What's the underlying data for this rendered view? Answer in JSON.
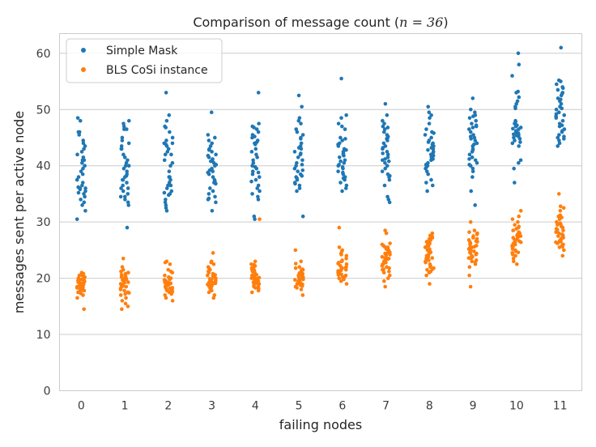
{
  "chart_data": {
    "type": "scatter",
    "subtype": "strip",
    "title": "Comparison of message count",
    "title_math": "n = 36",
    "xlabel": "failing nodes",
    "ylabel": "messages sent per active node",
    "categories": [
      "0",
      "1",
      "2",
      "3",
      "4",
      "5",
      "6",
      "7",
      "8",
      "9",
      "10",
      "11"
    ],
    "yticks": [
      0,
      10,
      20,
      30,
      40,
      50,
      60
    ],
    "ylim": [
      0,
      63.5
    ],
    "grid": true,
    "legend_position": "top-left",
    "series": [
      {
        "name": "Simple Mask",
        "color": "#1f77b4",
        "values": [
          [
            48.5,
            48.0,
            46.0,
            45.5,
            44.0,
            43.5,
            43.0,
            42.5,
            42.0,
            41.5,
            41.0,
            40.5,
            40.0,
            39.0,
            38.0,
            37.5,
            37.0,
            36.5,
            36.2,
            36.0,
            35.8,
            35.5,
            35.0,
            34.5,
            34.0,
            33.5,
            33.0,
            32.0,
            30.5,
            46.0,
            44.5,
            41.0,
            39.5,
            38.5,
            36.0,
            35.2
          ],
          [
            48.0,
            47.5,
            47.0,
            46.5,
            45.0,
            44.0,
            43.5,
            43.0,
            42.0,
            41.5,
            41.0,
            40.5,
            40.0,
            39.5,
            39.0,
            38.5,
            38.0,
            37.5,
            37.0,
            36.5,
            36.0,
            35.5,
            35.0,
            34.5,
            34.0,
            33.5,
            33.0,
            29.0,
            43.0,
            40.0,
            37.5,
            36.0,
            34.5,
            44.5,
            46.5,
            38.2
          ],
          [
            53.0,
            49.0,
            48.0,
            47.0,
            46.0,
            45.0,
            44.5,
            44.0,
            43.5,
            43.0,
            42.5,
            42.0,
            41.0,
            40.0,
            39.0,
            38.0,
            37.5,
            37.0,
            36.5,
            36.0,
            35.5,
            35.0,
            34.0,
            33.5,
            33.0,
            32.5,
            32.0,
            44.0,
            42.0,
            38.0,
            36.5,
            35.2,
            34.8,
            40.5,
            43.8,
            46.8
          ],
          [
            49.5,
            45.5,
            44.5,
            44.0,
            43.0,
            42.5,
            42.0,
            41.5,
            41.0,
            40.5,
            40.0,
            39.5,
            39.0,
            38.5,
            38.0,
            37.5,
            37.0,
            36.0,
            35.0,
            34.5,
            34.0,
            33.5,
            32.0,
            43.5,
            41.8,
            40.8,
            39.2,
            37.2,
            36.8,
            42.8,
            40.2,
            38.8,
            35.5,
            34.2,
            45.0,
            41.2
          ],
          [
            53.0,
            47.5,
            46.5,
            46.0,
            45.5,
            45.0,
            44.5,
            44.0,
            43.0,
            42.0,
            41.0,
            40.0,
            39.5,
            39.0,
            38.5,
            38.0,
            37.5,
            36.0,
            35.5,
            35.0,
            34.5,
            34.0,
            31.0,
            30.5,
            46.8,
            45.2,
            43.8,
            41.5,
            40.5,
            38.8,
            37.2,
            36.5,
            42.5,
            39.8,
            47.0,
            44.2
          ],
          [
            52.5,
            50.5,
            48.5,
            47.5,
            46.0,
            45.5,
            44.0,
            43.5,
            43.0,
            42.5,
            42.0,
            41.0,
            40.5,
            40.0,
            39.5,
            39.0,
            38.5,
            38.0,
            37.5,
            37.0,
            36.5,
            36.0,
            35.5,
            31.0,
            44.8,
            43.2,
            41.5,
            40.2,
            38.2,
            36.8,
            42.2,
            39.2,
            37.8,
            45.0,
            46.5,
            48.0
          ],
          [
            55.5,
            49.0,
            47.5,
            47.0,
            45.0,
            44.5,
            44.0,
            43.5,
            43.0,
            42.5,
            42.0,
            41.5,
            41.0,
            40.5,
            40.0,
            39.5,
            39.0,
            38.5,
            38.0,
            37.5,
            37.0,
            36.5,
            36.0,
            35.5,
            44.8,
            43.8,
            42.8,
            41.8,
            40.8,
            39.8,
            38.8,
            37.8,
            42.2,
            40.2,
            46.5,
            48.5
          ],
          [
            51.0,
            49.0,
            47.5,
            47.0,
            46.5,
            46.0,
            45.5,
            45.0,
            44.5,
            44.0,
            43.5,
            43.0,
            42.5,
            42.0,
            41.5,
            41.0,
            40.5,
            40.0,
            39.0,
            38.5,
            38.0,
            37.5,
            34.5,
            34.0,
            33.5,
            48.0,
            46.8,
            44.8,
            43.2,
            42.2,
            40.8,
            39.5,
            38.2,
            36.5,
            45.2,
            41.2
          ],
          [
            50.5,
            49.5,
            49.0,
            47.5,
            46.5,
            46.0,
            45.5,
            45.0,
            44.5,
            44.0,
            43.5,
            43.0,
            42.5,
            42.0,
            41.5,
            41.0,
            40.5,
            40.0,
            39.5,
            39.0,
            38.5,
            37.5,
            37.0,
            36.5,
            35.5,
            43.8,
            43.2,
            42.8,
            41.8,
            41.2,
            40.2,
            44.2,
            42.2,
            39.8,
            45.8,
            48.5
          ],
          [
            52.0,
            50.0,
            49.5,
            49.0,
            48.5,
            48.0,
            47.5,
            47.0,
            46.5,
            46.0,
            45.5,
            45.0,
            44.5,
            44.0,
            43.5,
            43.0,
            42.5,
            42.0,
            41.5,
            41.0,
            40.5,
            40.0,
            39.5,
            39.0,
            38.0,
            35.5,
            33.0,
            48.8,
            46.8,
            44.8,
            43.8,
            42.8,
            41.2,
            40.2,
            45.2,
            47.2
          ],
          [
            60.0,
            58.0,
            56.0,
            53.0,
            51.5,
            51.0,
            50.5,
            48.0,
            47.5,
            47.0,
            46.5,
            46.0,
            45.5,
            45.0,
            44.5,
            44.0,
            43.5,
            41.0,
            40.5,
            39.5,
            37.0,
            46.8,
            46.2,
            45.8,
            45.2,
            44.8,
            53.2,
            47.8,
            46.6,
            45.4,
            44.2,
            46.0,
            45.6,
            47.2,
            50.2,
            52.2
          ],
          [
            61.0,
            55.0,
            54.5,
            54.0,
            53.5,
            53.0,
            52.5,
            52.0,
            51.5,
            51.0,
            50.5,
            50.0,
            49.5,
            49.0,
            48.5,
            48.0,
            47.5,
            47.0,
            46.5,
            46.0,
            45.5,
            45.0,
            44.5,
            44.0,
            43.5,
            52.8,
            51.8,
            50.2,
            49.2,
            48.8,
            47.2,
            46.2,
            45.2,
            44.8,
            53.8,
            55.2
          ]
        ]
      },
      {
        "name": "BLS CoSi instance",
        "color": "#ff7f0e",
        "values": [
          [
            21.0,
            20.5,
            20.0,
            19.8,
            19.5,
            19.2,
            19.0,
            18.8,
            18.5,
            18.2,
            18.0,
            17.5,
            17.0,
            16.5,
            14.5,
            20.8,
            20.2,
            19.6,
            19.4,
            19.1,
            18.9,
            18.6,
            18.4,
            18.1,
            17.8,
            17.3,
            19.0,
            18.7,
            20.4,
            19.9,
            19.3,
            18.3,
            17.6,
            20.6,
            19.7,
            18.9
          ],
          [
            23.5,
            22.0,
            21.5,
            21.0,
            20.5,
            20.2,
            20.0,
            19.8,
            19.5,
            19.2,
            19.0,
            18.8,
            18.5,
            18.0,
            17.5,
            17.2,
            17.0,
            16.5,
            16.0,
            15.5,
            15.0,
            14.5,
            20.8,
            20.4,
            19.9,
            19.6,
            19.3,
            18.9,
            18.6,
            18.2,
            17.8,
            17.4,
            21.2,
            20.6,
            19.7,
            18.7
          ],
          [
            23.0,
            22.5,
            21.5,
            21.0,
            20.5,
            20.0,
            19.8,
            19.5,
            19.2,
            19.0,
            18.8,
            18.5,
            18.2,
            18.0,
            17.8,
            17.5,
            17.2,
            17.0,
            16.5,
            16.0,
            19.6,
            19.3,
            19.1,
            18.9,
            18.7,
            18.4,
            18.1,
            17.9,
            17.6,
            19.4,
            18.6,
            18.3,
            20.2,
            19.7,
            21.2,
            22.8
          ],
          [
            24.5,
            23.0,
            22.5,
            22.0,
            21.5,
            21.0,
            20.5,
            20.2,
            20.0,
            19.8,
            19.5,
            19.2,
            19.0,
            18.8,
            18.5,
            18.2,
            18.0,
            17.5,
            17.0,
            16.5,
            22.8,
            20.8,
            20.4,
            19.9,
            19.6,
            19.3,
            18.9,
            18.6,
            18.3,
            17.8,
            21.2,
            19.7,
            19.1,
            18.7,
            20.6,
            21.8
          ],
          [
            30.5,
            23.0,
            22.5,
            22.0,
            21.5,
            21.0,
            20.5,
            20.2,
            20.0,
            19.8,
            19.5,
            19.2,
            19.0,
            18.8,
            18.5,
            18.2,
            18.0,
            17.5,
            22.2,
            21.8,
            21.2,
            20.8,
            20.4,
            19.9,
            19.6,
            19.3,
            18.9,
            18.6,
            18.3,
            17.8,
            22.4,
            21.4,
            20.6,
            19.7,
            19.1,
            20.1
          ],
          [
            25.0,
            23.0,
            22.0,
            21.5,
            21.0,
            20.8,
            20.5,
            20.2,
            20.0,
            19.8,
            19.5,
            19.2,
            19.0,
            18.8,
            18.5,
            18.0,
            17.0,
            21.8,
            21.2,
            20.6,
            20.4,
            20.1,
            19.9,
            19.6,
            19.3,
            19.1,
            18.9,
            18.6,
            18.3,
            21.4,
            20.9,
            20.3,
            19.7,
            19.4,
            22.6,
            21.6
          ],
          [
            29.0,
            25.5,
            25.0,
            24.0,
            23.5,
            23.0,
            22.5,
            22.0,
            21.8,
            21.5,
            21.2,
            21.0,
            20.8,
            20.5,
            20.2,
            20.0,
            19.8,
            19.5,
            19.0,
            24.8,
            24.2,
            22.8,
            22.2,
            21.9,
            21.6,
            21.4,
            21.1,
            20.9,
            20.6,
            20.3,
            23.2,
            21.7,
            21.3,
            20.7,
            22.6,
            24.4
          ],
          [
            28.5,
            28.0,
            26.0,
            25.5,
            25.0,
            24.5,
            24.0,
            23.5,
            23.0,
            22.5,
            22.0,
            21.5,
            21.0,
            20.5,
            20.0,
            19.5,
            18.5,
            25.8,
            25.2,
            24.8,
            24.2,
            23.8,
            23.2,
            22.8,
            22.2,
            21.8,
            21.2,
            24.6,
            23.6,
            22.6,
            21.6,
            25.6,
            24.4,
            23.4,
            22.4,
            26.2
          ],
          [
            28.0,
            27.5,
            27.0,
            26.5,
            26.0,
            25.5,
            25.0,
            24.5,
            24.0,
            23.5,
            23.0,
            22.5,
            22.0,
            21.5,
            21.0,
            20.5,
            19.0,
            27.2,
            26.2,
            25.2,
            24.2,
            23.2,
            22.2,
            21.8,
            21.2,
            27.6,
            26.8,
            25.8,
            24.8,
            23.8,
            22.8,
            21.6,
            24.6,
            23.6,
            25.6,
            26.6
          ],
          [
            30.0,
            28.5,
            28.0,
            27.5,
            27.0,
            26.5,
            26.0,
            25.5,
            25.0,
            24.5,
            24.0,
            23.5,
            23.0,
            22.5,
            22.0,
            20.5,
            18.5,
            27.2,
            26.8,
            26.2,
            25.8,
            25.2,
            24.8,
            24.2,
            23.8,
            23.2,
            22.8,
            26.4,
            25.6,
            24.6,
            23.6,
            27.8,
            26.6,
            24.4,
            25.4,
            28.2
          ],
          [
            32.0,
            31.0,
            30.5,
            30.0,
            29.5,
            29.0,
            28.5,
            28.0,
            27.5,
            27.0,
            26.5,
            26.0,
            25.5,
            25.0,
            24.5,
            24.0,
            23.5,
            23.0,
            22.5,
            28.8,
            28.2,
            27.8,
            27.2,
            26.8,
            26.2,
            25.8,
            25.2,
            24.8,
            24.2,
            27.4,
            26.6,
            25.6,
            24.6,
            29.2,
            27.6,
            26.4
          ],
          [
            35.0,
            32.5,
            32.0,
            31.0,
            30.5,
            30.0,
            29.5,
            29.0,
            28.5,
            28.0,
            27.5,
            27.0,
            26.5,
            26.0,
            25.5,
            25.0,
            24.0,
            30.8,
            29.8,
            28.8,
            28.2,
            27.8,
            27.2,
            26.8,
            26.2,
            25.8,
            29.2,
            28.6,
            27.6,
            26.6,
            32.8,
            31.2,
            29.6,
            27.4,
            26.4,
            25.6
          ]
        ]
      }
    ]
  }
}
